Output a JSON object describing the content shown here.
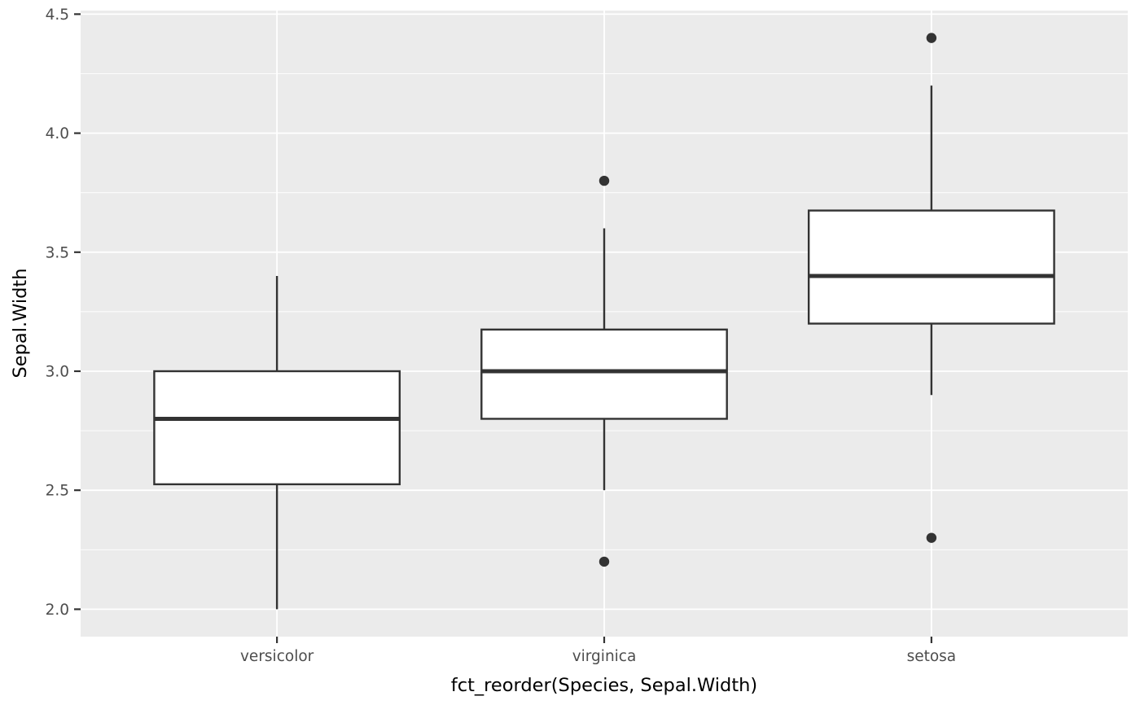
{
  "chart_data": {
    "type": "boxplot",
    "title": "",
    "xlabel": "fct_reorder(Species, Sepal.Width)",
    "ylabel": "Sepal.Width",
    "categories": [
      "versicolor",
      "virginica",
      "setosa"
    ],
    "series": [
      {
        "category": "versicolor",
        "lower_whisker": 2.0,
        "q1": 2.525,
        "median": 2.8,
        "q3": 3.0,
        "upper_whisker": 3.4,
        "outliers": []
      },
      {
        "category": "virginica",
        "lower_whisker": 2.5,
        "q1": 2.8,
        "median": 3.0,
        "q3": 3.175,
        "upper_whisker": 3.6,
        "outliers": [
          2.2,
          3.8
        ]
      },
      {
        "category": "setosa",
        "lower_whisker": 2.9,
        "q1": 3.2,
        "median": 3.4,
        "q3": 3.675,
        "upper_whisker": 4.2,
        "outliers": [
          2.3,
          4.4
        ]
      }
    ],
    "y_ticks": [
      2.0,
      2.5,
      3.0,
      3.5,
      4.0,
      4.5
    ],
    "y_tick_labels": [
      "2.0",
      "2.5",
      "3.0",
      "3.5",
      "4.0",
      "4.5"
    ],
    "y_minor_ticks": [
      2.25,
      2.75,
      3.25,
      3.75,
      4.25
    ],
    "ylim": [
      1.885,
      4.515
    ],
    "grid": true,
    "legend": "none",
    "style": {
      "figure_bg": "#FFFFFF",
      "panel_bg": "#EBEBEB",
      "grid_color": "#FFFFFF",
      "box_fill": "#FFFFFF",
      "stroke": "#333333",
      "tick_mark": "#333333",
      "tick_label_color": "#4D4D4D",
      "axis_title_color": "#000000"
    }
  }
}
